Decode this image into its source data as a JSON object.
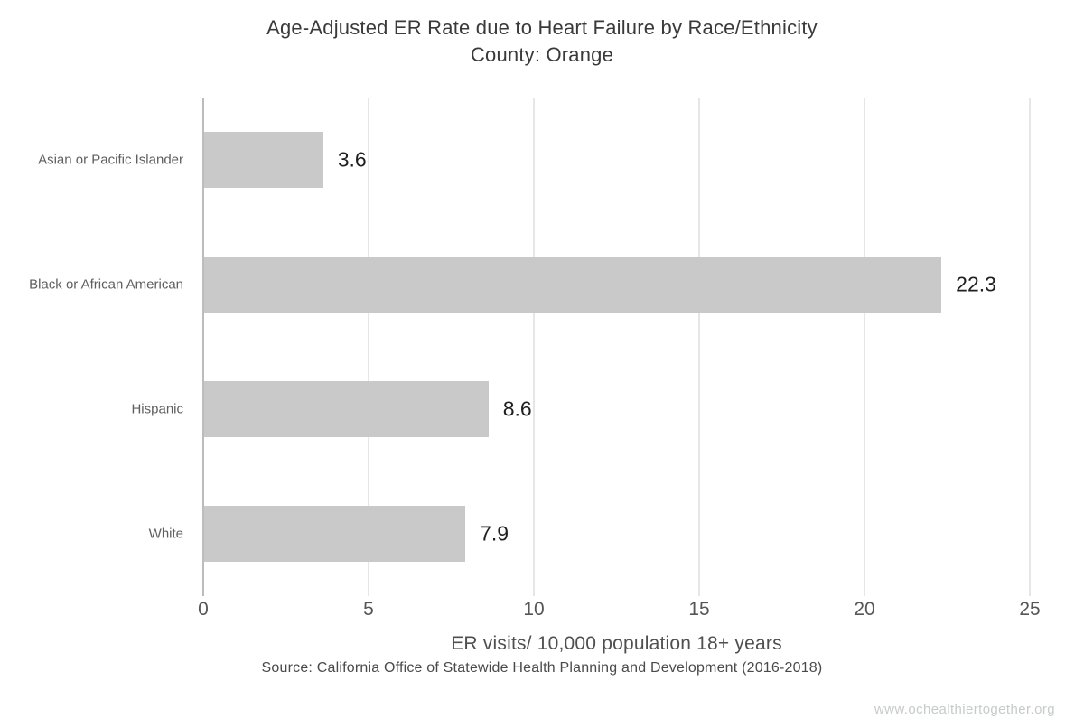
{
  "title": {
    "line1": "Age-Adjusted ER Rate due to Heart Failure by Race/Ethnicity",
    "line2": "County: Orange"
  },
  "chart_data": {
    "type": "bar",
    "orientation": "horizontal",
    "title": "Age-Adjusted ER Rate due to Heart Failure by Race/Ethnicity",
    "subtitle": "County: Orange",
    "categories": [
      "Asian or Pacific Islander",
      "Black or African American",
      "Hispanic",
      "White"
    ],
    "values": [
      3.6,
      22.3,
      8.6,
      7.9
    ],
    "value_labels": [
      "3.6",
      "22.3",
      "8.6",
      "7.9"
    ],
    "xlabel": "ER visits/ 10,000 population 18+ years",
    "ylabel": "",
    "xlim": [
      0,
      25
    ],
    "xticks": [
      0,
      5,
      10,
      15,
      20,
      25
    ],
    "grid": "vertical-only",
    "legend": "none",
    "bar_color": "#c9c9c9",
    "gridline_color": "#e6e6e6",
    "axis_line_color": "#bcbcbc"
  },
  "footer": {
    "source": "Source: California Office of Statewide Health Planning and Development (2016-2018)",
    "watermark": "www.ochealthiertogether.org"
  }
}
